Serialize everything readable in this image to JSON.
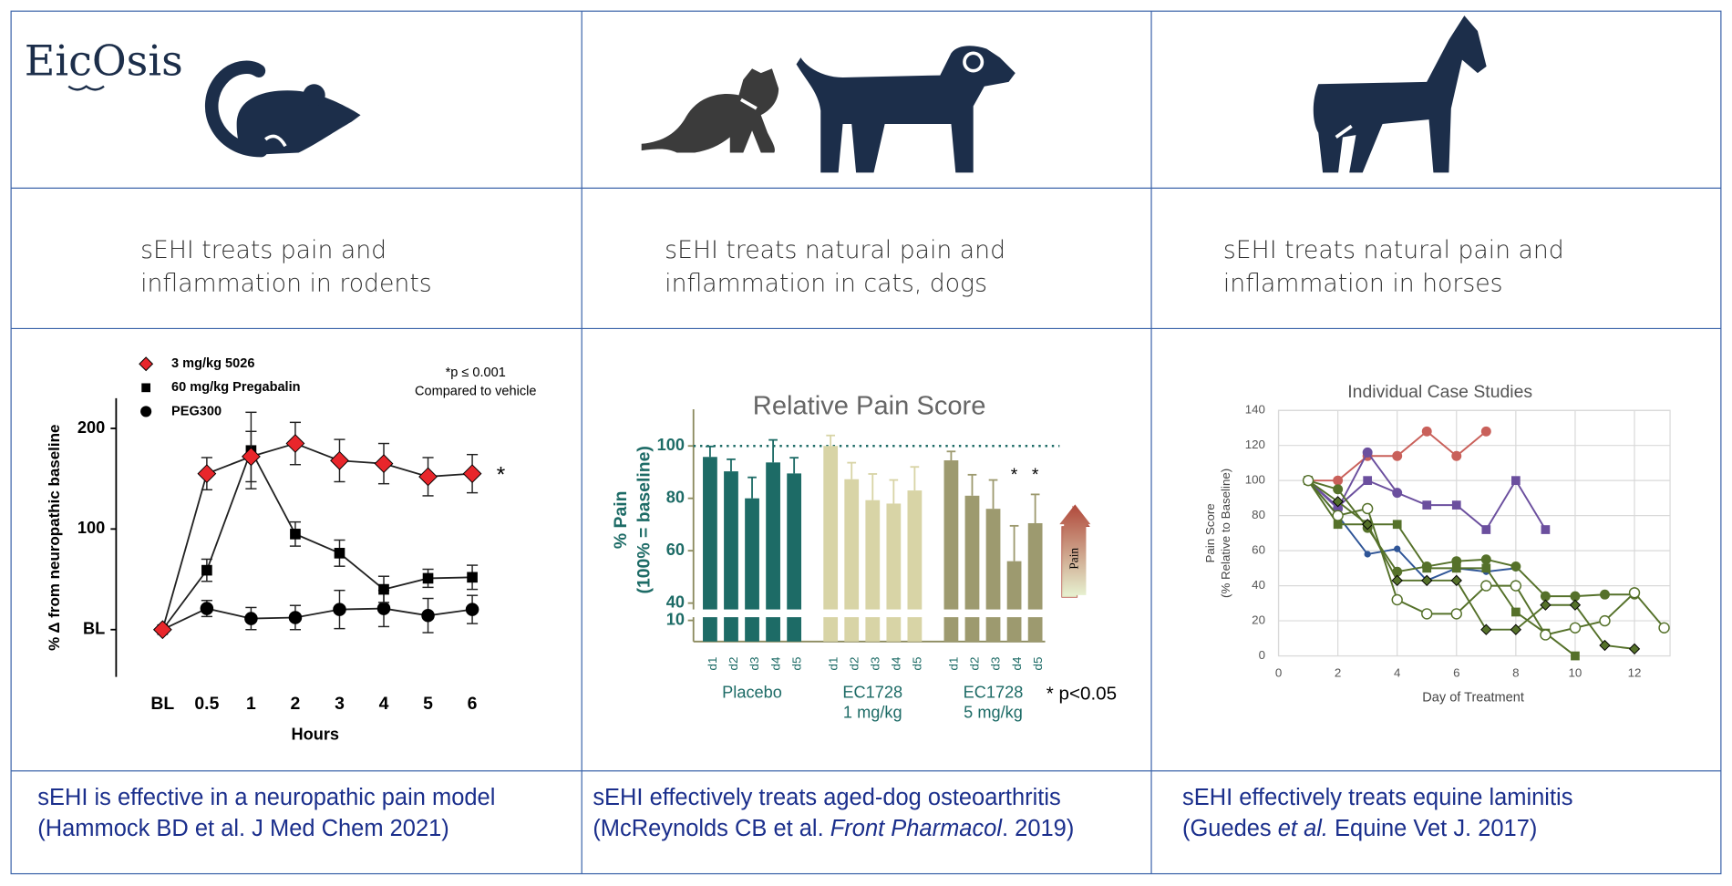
{
  "logo": "EicOsis",
  "columns": [
    {
      "heading": [
        "sEHI treats pain and",
        "inflammation in rodents"
      ],
      "caption": [
        "sEHI is effective in a neuropathic pain model",
        [
          "(Hammock BD et al. J Med Chem 2021)"
        ]
      ]
    },
    {
      "heading": [
        "sEHI treats natural pain and",
        "inflammation in cats, dogs"
      ],
      "caption": [
        "sEHI effectively treats aged-dog osteoarthritis",
        [
          "(McReynolds CB et al. ",
          "Front Pharmacol",
          ". 2019)"
        ]
      ]
    },
    {
      "heading": [
        "sEHI treats natural pain and",
        "inflammation in horses"
      ],
      "caption": [
        "sEHI effectively treats equine laminitis",
        [
          "(Guedes ",
          "et al.",
          " Equine Vet J. 2017)"
        ]
      ]
    }
  ],
  "chart_data": [
    {
      "type": "line",
      "categories": [
        "BL",
        "0.5",
        "1",
        "2",
        "3",
        "4",
        "5",
        "6"
      ],
      "ylim": [
        -47,
        230
      ],
      "yticks": [
        {
          "value": 0,
          "label": "BL"
        },
        100,
        200
      ],
      "ylabel": "% Δ from neuropathic baseline",
      "xlabel": "Hours",
      "annotations": [
        "*p ≤ 0.001",
        "Compared to vehicle"
      ],
      "significance": "*",
      "series": [
        {
          "name": "3 mg/kg 5026",
          "color": "#e8262b",
          "marker": "diamond",
          "values": [
            0,
            155,
            172,
            185,
            168,
            165,
            152,
            155
          ],
          "errors": [
            null,
            16,
            25,
            21,
            21,
            20,
            19,
            19
          ]
        },
        {
          "name": "60 mg/kg Pregabalin",
          "color": "#000000",
          "marker": "square",
          "values": [
            0,
            59,
            178,
            95,
            76,
            40,
            51,
            52
          ],
          "errors": [
            null,
            11,
            38,
            12,
            13,
            13,
            9,
            12
          ]
        },
        {
          "name": "PEG300",
          "color": "#000000",
          "marker": "circle",
          "values": [
            0,
            21,
            11,
            12,
            20,
            21,
            14,
            20
          ],
          "errors": [
            null,
            8,
            11,
            12,
            19,
            18,
            17,
            14
          ]
        }
      ]
    },
    {
      "type": "bar",
      "title": "Relative Pain Score",
      "ylabel": [
        "% Pain",
        "(100% = baseline)"
      ],
      "ylim": [
        0,
        114
      ],
      "ybreak": [
        11,
        38
      ],
      "yticks": [
        10,
        40,
        60,
        80,
        100
      ],
      "reference_line": 100,
      "categories": [
        "d1",
        "d2",
        "d3",
        "d4",
        "d5"
      ],
      "series": [
        {
          "label": [
            "Placebo"
          ],
          "color": "#1d6b66",
          "values": [
            95.8,
            90.3,
            80,
            93.7,
            89.5
          ],
          "errors": [
            4,
            4.6,
            8,
            8.6,
            6
          ]
        },
        {
          "label": [
            "EC1728",
            "1 mg/kg"
          ],
          "color": "#d8d4a6",
          "values": [
            100,
            87.3,
            79.3,
            78,
            83
          ],
          "errors": [
            4,
            6.3,
            10,
            9,
            9
          ]
        },
        {
          "label": [
            "EC1728",
            "5 mg/kg"
          ],
          "color": "#9d9a6f",
          "values": [
            94.5,
            81,
            76,
            56,
            70.5
          ],
          "errors": [
            3.4,
            8,
            11,
            13.5,
            11
          ],
          "stars": [
            null,
            null,
            null,
            "*",
            "*"
          ]
        }
      ],
      "arrow_label": "Pain",
      "note": "* p<0.05"
    },
    {
      "type": "line",
      "title": "Individual Case Studies",
      "xlim": [
        0,
        13.2
      ],
      "ylim": [
        0,
        140
      ],
      "xticks": [
        0,
        2,
        4,
        6,
        8,
        10,
        12
      ],
      "yticks": [
        0,
        20,
        40,
        60,
        80,
        100,
        120,
        140
      ],
      "xlabel": "Day of Treatment",
      "ylabel": [
        "Pain Score",
        "(% Relative to Baseline)"
      ],
      "grid": true,
      "series": [
        {
          "color": "#c9605a",
          "marker": "circle",
          "x": [
            1,
            2,
            3,
            4,
            5,
            6,
            7
          ],
          "values": [
            100,
            100,
            114,
            114,
            128,
            114,
            128
          ]
        },
        {
          "color": "#6b4f9e",
          "marker": "square",
          "x": [
            1,
            2,
            3,
            5,
            6,
            7,
            8,
            9
          ],
          "values": [
            100,
            85,
            100,
            86,
            86,
            72,
            100,
            72
          ]
        },
        {
          "color": "#6b4f9e",
          "marker": "circle",
          "x": [
            1,
            2,
            3,
            4
          ],
          "values": [
            100,
            84,
            116,
            93
          ]
        },
        {
          "color": "#2f5597",
          "marker": "dot",
          "x": [
            1,
            2,
            3,
            4,
            5,
            6,
            7,
            8
          ],
          "values": [
            100,
            80,
            58,
            61,
            43,
            50,
            48,
            50
          ]
        },
        {
          "color": "#55712a",
          "marker": "circle",
          "x": [
            1,
            2,
            3,
            4,
            5,
            6,
            7,
            8,
            9,
            10,
            11,
            12
          ],
          "values": [
            100,
            95,
            73,
            48,
            51,
            54,
            55,
            51,
            34,
            34,
            35,
            35
          ]
        },
        {
          "color": "#55712a",
          "marker": "square",
          "x": [
            1,
            2,
            3,
            4,
            5,
            6,
            7,
            8,
            9,
            10
          ],
          "values": [
            100,
            75,
            75,
            75,
            50,
            50,
            50,
            25,
            13,
            0
          ]
        },
        {
          "color": "#55712a",
          "marker": "diamond",
          "x": [
            1,
            2,
            3,
            4,
            5,
            6,
            7,
            8,
            9,
            10,
            11,
            12
          ],
          "values": [
            100,
            88,
            75,
            43,
            43,
            43,
            15,
            15,
            29,
            29,
            6,
            4
          ]
        },
        {
          "color": "#55712a",
          "marker": "open-circle",
          "x": [
            1,
            2,
            3,
            4,
            5,
            6,
            7,
            8,
            9,
            10,
            11,
            12,
            13
          ],
          "values": [
            100,
            80,
            84,
            32,
            24,
            24,
            40,
            40,
            12,
            16,
            20,
            36,
            16
          ]
        }
      ]
    }
  ]
}
